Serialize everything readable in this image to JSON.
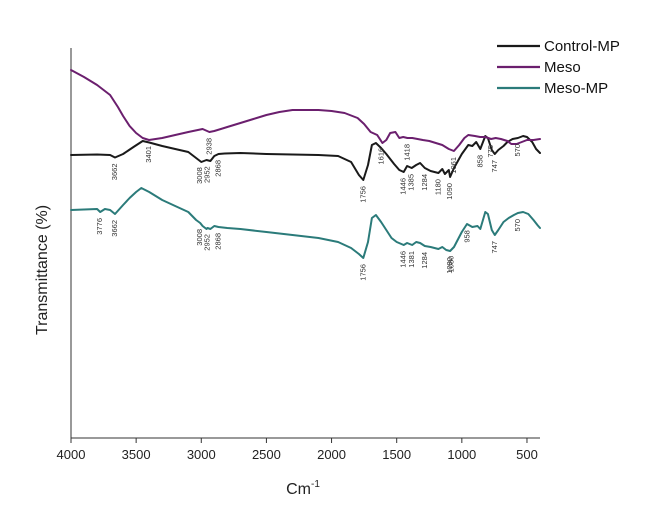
{
  "chart_data": {
    "type": "line",
    "title": "",
    "xlabel": "Cm",
    "xlabel_sup": "-1",
    "ylabel": "Transmittance (%)",
    "xlim": [
      4000,
      400
    ],
    "x_reversed": true,
    "y_ticks_shown": false,
    "grid": false,
    "legend_position": "top-right",
    "x_ticks": [
      4000,
      3500,
      3000,
      2500,
      2000,
      1500,
      1000,
      500
    ],
    "x_tick_labels": [
      "4000",
      "3500",
      "3000",
      "2500",
      "2000",
      "1500",
      "1000",
      "500"
    ],
    "series": [
      {
        "name": "Control-MP",
        "color": "#1a1a1a",
        "points": [
          [
            4000,
            95
          ],
          [
            3800,
            95.5
          ],
          [
            3700,
            95
          ],
          [
            3662,
            92.5
          ],
          [
            3600,
            96
          ],
          [
            3520,
            103
          ],
          [
            3450,
            109
          ],
          [
            3400,
            107.5
          ],
          [
            3300,
            104
          ],
          [
            3200,
            101
          ],
          [
            3100,
            98
          ],
          [
            3050,
            93
          ],
          [
            3000,
            88
          ],
          [
            2960,
            90
          ],
          [
            2930,
            89
          ],
          [
            2900,
            94
          ],
          [
            2868,
            96
          ],
          [
            2820,
            96.5
          ],
          [
            2700,
            97
          ],
          [
            2500,
            96
          ],
          [
            2300,
            95.5
          ],
          [
            2100,
            95
          ],
          [
            1950,
            94
          ],
          [
            1850,
            88
          ],
          [
            1790,
            75
          ],
          [
            1756,
            70
          ],
          [
            1720,
            85
          ],
          [
            1690,
            105
          ],
          [
            1660,
            107
          ],
          [
            1620,
            102
          ],
          [
            1580,
            96
          ],
          [
            1520,
            86
          ],
          [
            1480,
            80
          ],
          [
            1446,
            78
          ],
          [
            1420,
            84
          ],
          [
            1385,
            82
          ],
          [
            1350,
            85
          ],
          [
            1320,
            87
          ],
          [
            1284,
            82
          ],
          [
            1240,
            79
          ],
          [
            1180,
            77
          ],
          [
            1150,
            81
          ],
          [
            1130,
            76
          ],
          [
            1100,
            80
          ],
          [
            1090,
            73
          ],
          [
            1060,
            82
          ],
          [
            1000,
            96
          ],
          [
            950,
            105
          ],
          [
            920,
            104
          ],
          [
            890,
            108
          ],
          [
            858,
            101
          ],
          [
            820,
            114
          ],
          [
            800,
            112
          ],
          [
            770,
            100
          ],
          [
            747,
            96
          ],
          [
            720,
            100
          ],
          [
            680,
            104
          ],
          [
            650,
            108
          ],
          [
            610,
            111
          ],
          [
            570,
            112
          ],
          [
            530,
            114
          ],
          [
            500,
            113
          ],
          [
            460,
            108
          ],
          [
            430,
            101
          ],
          [
            400,
            97
          ]
        ]
      },
      {
        "name": "Meso",
        "color": "#6b1f6e",
        "points": [
          [
            4000,
            180
          ],
          [
            3900,
            173
          ],
          [
            3800,
            165
          ],
          [
            3700,
            155
          ],
          [
            3640,
            143
          ],
          [
            3600,
            134
          ],
          [
            3550,
            124
          ],
          [
            3500,
            117
          ],
          [
            3450,
            112
          ],
          [
            3401,
            110
          ],
          [
            3300,
            112
          ],
          [
            3200,
            115
          ],
          [
            3100,
            118
          ],
          [
            2990,
            121
          ],
          [
            2938,
            118
          ],
          [
            2900,
            119
          ],
          [
            2800,
            123
          ],
          [
            2700,
            127
          ],
          [
            2600,
            131
          ],
          [
            2500,
            135
          ],
          [
            2400,
            138
          ],
          [
            2300,
            140
          ],
          [
            2200,
            140
          ],
          [
            2100,
            140
          ],
          [
            2000,
            139
          ],
          [
            1900,
            137
          ],
          [
            1800,
            132
          ],
          [
            1750,
            126
          ],
          [
            1700,
            118
          ],
          [
            1650,
            115
          ],
          [
            1610,
            107
          ],
          [
            1580,
            110
          ],
          [
            1550,
            117
          ],
          [
            1510,
            118
          ],
          [
            1480,
            112
          ],
          [
            1450,
            113
          ],
          [
            1418,
            112
          ],
          [
            1380,
            112
          ],
          [
            1300,
            110
          ],
          [
            1250,
            109
          ],
          [
            1200,
            107
          ],
          [
            1150,
            105
          ],
          [
            1100,
            101
          ],
          [
            1061,
            99
          ],
          [
            1020,
            105
          ],
          [
            980,
            112
          ],
          [
            950,
            115
          ],
          [
            900,
            114
          ],
          [
            860,
            113
          ],
          [
            820,
            113
          ],
          [
            775,
            111
          ],
          [
            740,
            112
          ],
          [
            700,
            111
          ],
          [
            650,
            109
          ],
          [
            620,
            106
          ],
          [
            580,
            106
          ],
          [
            540,
            108
          ],
          [
            500,
            110
          ],
          [
            450,
            110
          ],
          [
            400,
            111
          ]
        ]
      },
      {
        "name": "Meso-MP",
        "color": "#2b7b7a",
        "points": [
          [
            4000,
            40
          ],
          [
            3900,
            40.5
          ],
          [
            3800,
            41
          ],
          [
            3776,
            38
          ],
          [
            3740,
            41
          ],
          [
            3700,
            40
          ],
          [
            3662,
            36
          ],
          [
            3600,
            45
          ],
          [
            3550,
            52
          ],
          [
            3500,
            58
          ],
          [
            3460,
            62
          ],
          [
            3400,
            58
          ],
          [
            3300,
            50
          ],
          [
            3200,
            44
          ],
          [
            3100,
            38
          ],
          [
            3040,
            30
          ],
          [
            3008,
            27
          ],
          [
            2990,
            24
          ],
          [
            2960,
            21
          ],
          [
            2952,
            22
          ],
          [
            2930,
            21
          ],
          [
            2900,
            24
          ],
          [
            2868,
            23
          ],
          [
            2800,
            22
          ],
          [
            2700,
            21
          ],
          [
            2500,
            18
          ],
          [
            2300,
            15
          ],
          [
            2100,
            12
          ],
          [
            1950,
            8
          ],
          [
            1850,
            2
          ],
          [
            1790,
            -4
          ],
          [
            1756,
            -8
          ],
          [
            1720,
            8
          ],
          [
            1690,
            32
          ],
          [
            1660,
            35
          ],
          [
            1620,
            28
          ],
          [
            1580,
            20
          ],
          [
            1540,
            12
          ],
          [
            1500,
            8
          ],
          [
            1446,
            5
          ],
          [
            1420,
            7
          ],
          [
            1381,
            5
          ],
          [
            1350,
            8
          ],
          [
            1320,
            7
          ],
          [
            1284,
            4
          ],
          [
            1240,
            3
          ],
          [
            1180,
            1
          ],
          [
            1150,
            3
          ],
          [
            1120,
            0
          ],
          [
            1090,
            -1
          ],
          [
            1060,
            3
          ],
          [
            1000,
            18
          ],
          [
            960,
            26
          ],
          [
            920,
            23
          ],
          [
            880,
            24
          ],
          [
            858,
            21
          ],
          [
            820,
            38
          ],
          [
            800,
            36
          ],
          [
            770,
            20
          ],
          [
            747,
            15
          ],
          [
            720,
            20
          ],
          [
            680,
            28
          ],
          [
            640,
            32
          ],
          [
            600,
            35
          ],
          [
            570,
            37
          ],
          [
            530,
            38
          ],
          [
            490,
            36
          ],
          [
            450,
            30
          ],
          [
            420,
            25
          ],
          [
            400,
            22
          ]
        ]
      }
    ],
    "annotations": [
      {
        "series": "Control-MP",
        "x": 3662,
        "text": "3662"
      },
      {
        "series": "Control-MP",
        "x": 3008,
        "text": "3008"
      },
      {
        "series": "Control-MP",
        "x": 2952,
        "text": "2952"
      },
      {
        "series": "Control-MP",
        "x": 2868,
        "text": "2868"
      },
      {
        "series": "Control-MP",
        "x": 1756,
        "text": "1756"
      },
      {
        "series": "Control-MP",
        "x": 1446,
        "text": "1446"
      },
      {
        "series": "Control-MP",
        "x": 1385,
        "text": "1385"
      },
      {
        "series": "Control-MP",
        "x": 1284,
        "text": "1284"
      },
      {
        "series": "Control-MP",
        "x": 1180,
        "text": "1180"
      },
      {
        "series": "Control-MP",
        "x": 1090,
        "text": "1090"
      },
      {
        "series": "Control-MP",
        "x": 858,
        "text": "858"
      },
      {
        "series": "Control-MP",
        "x": 747,
        "text": "747"
      },
      {
        "series": "Control-MP",
        "x": 570,
        "text": "570"
      },
      {
        "series": "Meso",
        "x": 3401,
        "text": "3401"
      },
      {
        "series": "Meso",
        "x": 2938,
        "text": "2938"
      },
      {
        "series": "Meso",
        "x": 1616,
        "text": "1616"
      },
      {
        "series": "Meso",
        "x": 1418,
        "text": "1418"
      },
      {
        "series": "Meso",
        "x": 1061,
        "text": "1061"
      },
      {
        "series": "Meso",
        "x": 775,
        "text": "775"
      },
      {
        "series": "Meso-MP",
        "x": 3776,
        "text": "3776"
      },
      {
        "series": "Meso-MP",
        "x": 3662,
        "text": "3662"
      },
      {
        "series": "Meso-MP",
        "x": 3008,
        "text": "3008"
      },
      {
        "series": "Meso-MP",
        "x": 2952,
        "text": "2952"
      },
      {
        "series": "Meso-MP",
        "x": 2868,
        "text": "2868"
      },
      {
        "series": "Meso-MP",
        "x": 1756,
        "text": "1756"
      },
      {
        "series": "Meso-MP",
        "x": 1446,
        "text": "1446"
      },
      {
        "series": "Meso-MP",
        "x": 1381,
        "text": "1381"
      },
      {
        "series": "Meso-MP",
        "x": 1284,
        "text": "1284"
      },
      {
        "series": "Meso-MP",
        "x": 1080,
        "text": "1080"
      },
      {
        "series": "Meso-MP",
        "x": 1090,
        "text": "1090"
      },
      {
        "series": "Meso-MP",
        "x": 958,
        "text": "958"
      },
      {
        "series": "Meso-MP",
        "x": 747,
        "text": "747"
      },
      {
        "series": "Meso-MP",
        "x": 570,
        "text": "570"
      }
    ]
  }
}
